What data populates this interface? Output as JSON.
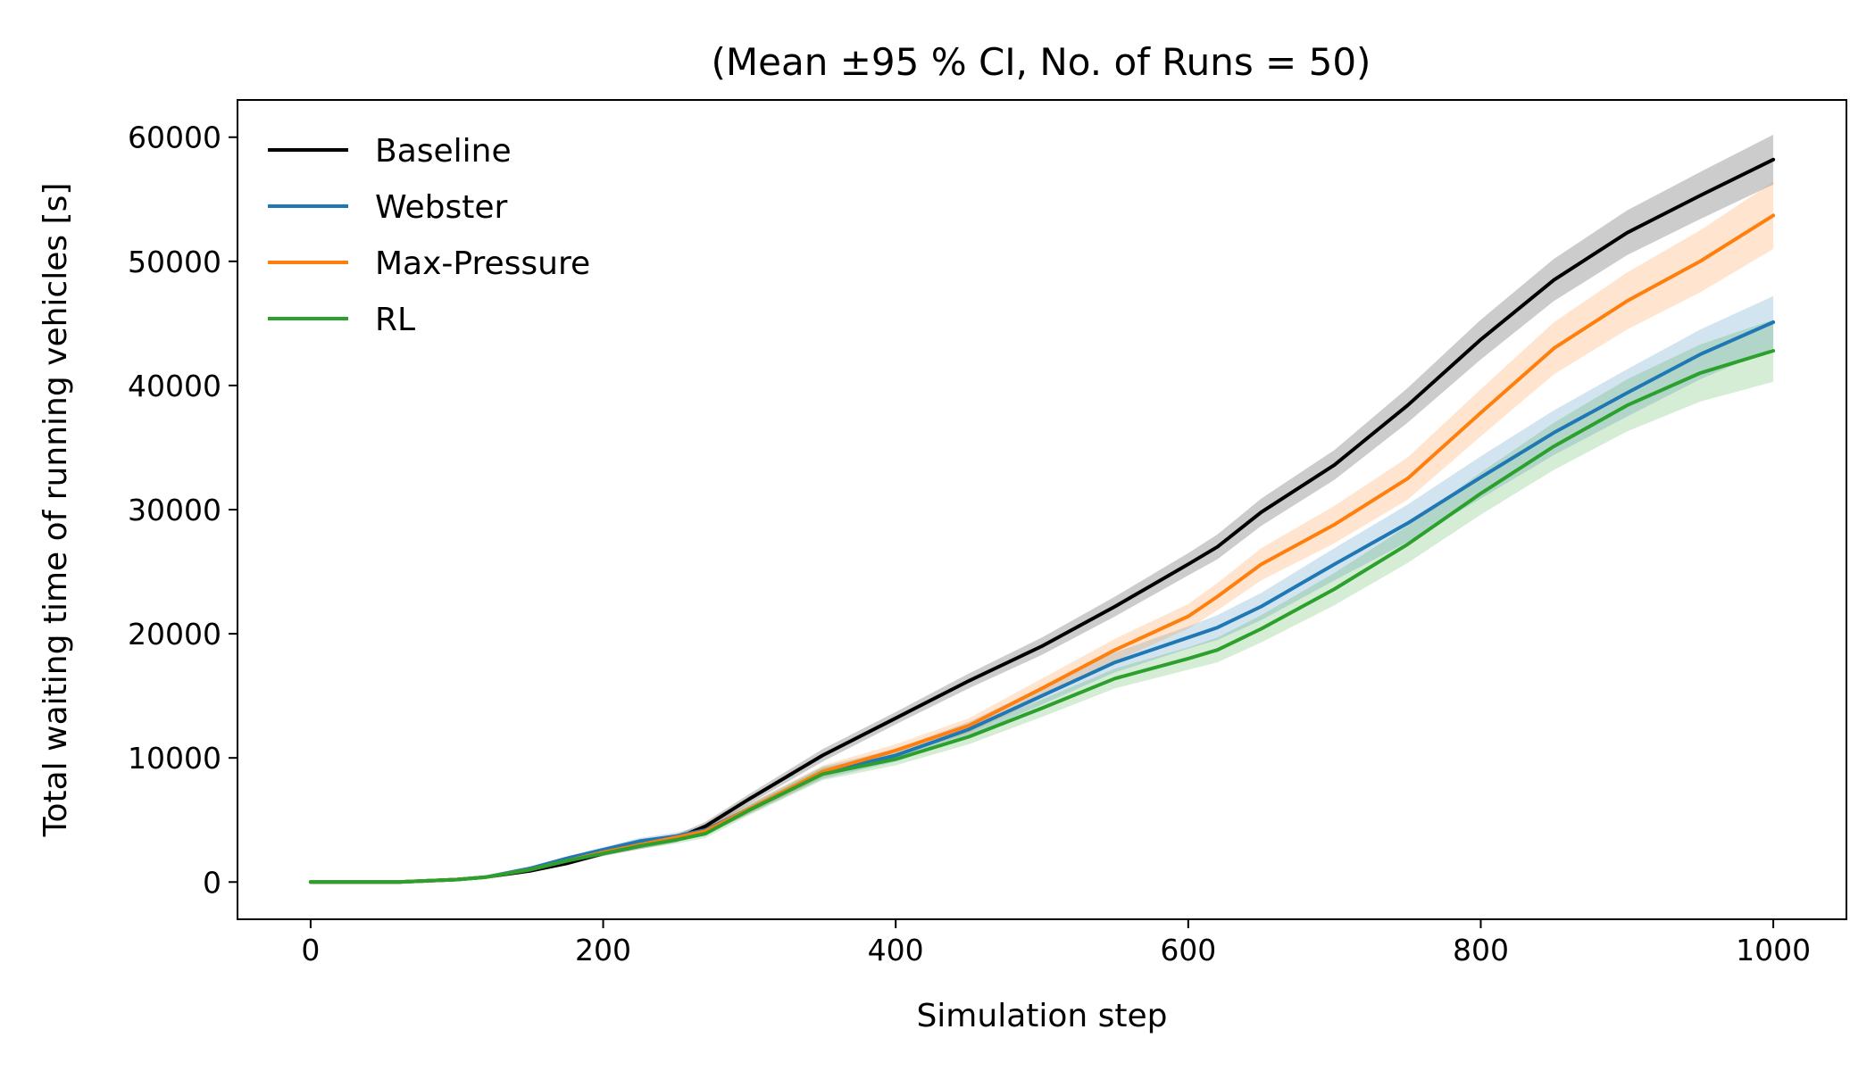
{
  "chart_data": {
    "type": "line",
    "title": "(Mean ±95 % CI, No. of Runs = 50)",
    "xlabel": "Simulation step",
    "ylabel": "Total waiting time of running vehicles [s]",
    "xlim": [
      -50,
      1050
    ],
    "ylim": [
      -3000,
      63000
    ],
    "xticks": [
      0,
      200,
      400,
      600,
      800,
      1000
    ],
    "yticks": [
      0,
      10000,
      20000,
      30000,
      40000,
      50000,
      60000
    ],
    "grid": false,
    "legend_position": "top-left",
    "x": [
      0,
      60,
      100,
      120,
      150,
      175,
      200,
      225,
      250,
      270,
      300,
      350,
      400,
      450,
      500,
      550,
      600,
      620,
      650,
      700,
      750,
      800,
      850,
      900,
      950,
      1000
    ],
    "series": [
      {
        "name": "Baseline",
        "color": "#000000",
        "values": [
          0,
          0,
          200,
          400,
          900,
          1500,
          2300,
          2900,
          3500,
          4500,
          6700,
          10200,
          13200,
          16200,
          19000,
          22200,
          25600,
          27000,
          29800,
          33600,
          38400,
          43700,
          48500,
          52300,
          55300,
          58200
        ],
        "ci": [
          0,
          0,
          50,
          50,
          100,
          150,
          200,
          250,
          300,
          350,
          400,
          500,
          500,
          600,
          700,
          800,
          900,
          1000,
          1100,
          1200,
          1400,
          1600,
          1700,
          1800,
          1900,
          2000
        ]
      },
      {
        "name": "Webster",
        "color": "#1f77b4",
        "values": [
          0,
          0,
          200,
          400,
          1100,
          1900,
          2600,
          3300,
          3700,
          4200,
          5900,
          8800,
          10200,
          12300,
          15000,
          17700,
          19700,
          20500,
          22200,
          25600,
          28900,
          32600,
          36200,
          39400,
          42500,
          45100
        ],
        "ci": [
          0,
          0,
          50,
          50,
          100,
          150,
          200,
          250,
          300,
          350,
          400,
          500,
          500,
          600,
          700,
          800,
          900,
          1000,
          1100,
          1300,
          1500,
          1700,
          1800,
          1900,
          2000,
          2100
        ]
      },
      {
        "name": "Max-Pressure",
        "color": "#ff7f0e",
        "values": [
          0,
          0,
          200,
          400,
          1000,
          1700,
          2400,
          3000,
          3600,
          4100,
          5900,
          8900,
          10600,
          12600,
          15600,
          18700,
          21400,
          23000,
          25600,
          28800,
          32500,
          37800,
          43000,
          46800,
          50000,
          53700
        ],
        "ci": [
          0,
          0,
          50,
          50,
          100,
          150,
          200,
          250,
          300,
          350,
          400,
          500,
          500,
          600,
          800,
          900,
          1000,
          1100,
          1300,
          1500,
          1700,
          1900,
          2100,
          2300,
          2500,
          2700
        ]
      },
      {
        "name": "RL",
        "color": "#2ca02c",
        "values": [
          0,
          0,
          200,
          400,
          1000,
          1700,
          2300,
          2900,
          3400,
          3900,
          5800,
          8700,
          9900,
          11700,
          14000,
          16400,
          18000,
          18700,
          20400,
          23600,
          27200,
          31300,
          35100,
          38400,
          41000,
          42800
        ],
        "ci": [
          0,
          0,
          50,
          50,
          100,
          150,
          200,
          250,
          300,
          350,
          400,
          500,
          500,
          600,
          700,
          800,
          900,
          1000,
          1100,
          1300,
          1500,
          1700,
          1900,
          2100,
          2300,
          2500
        ]
      }
    ]
  }
}
